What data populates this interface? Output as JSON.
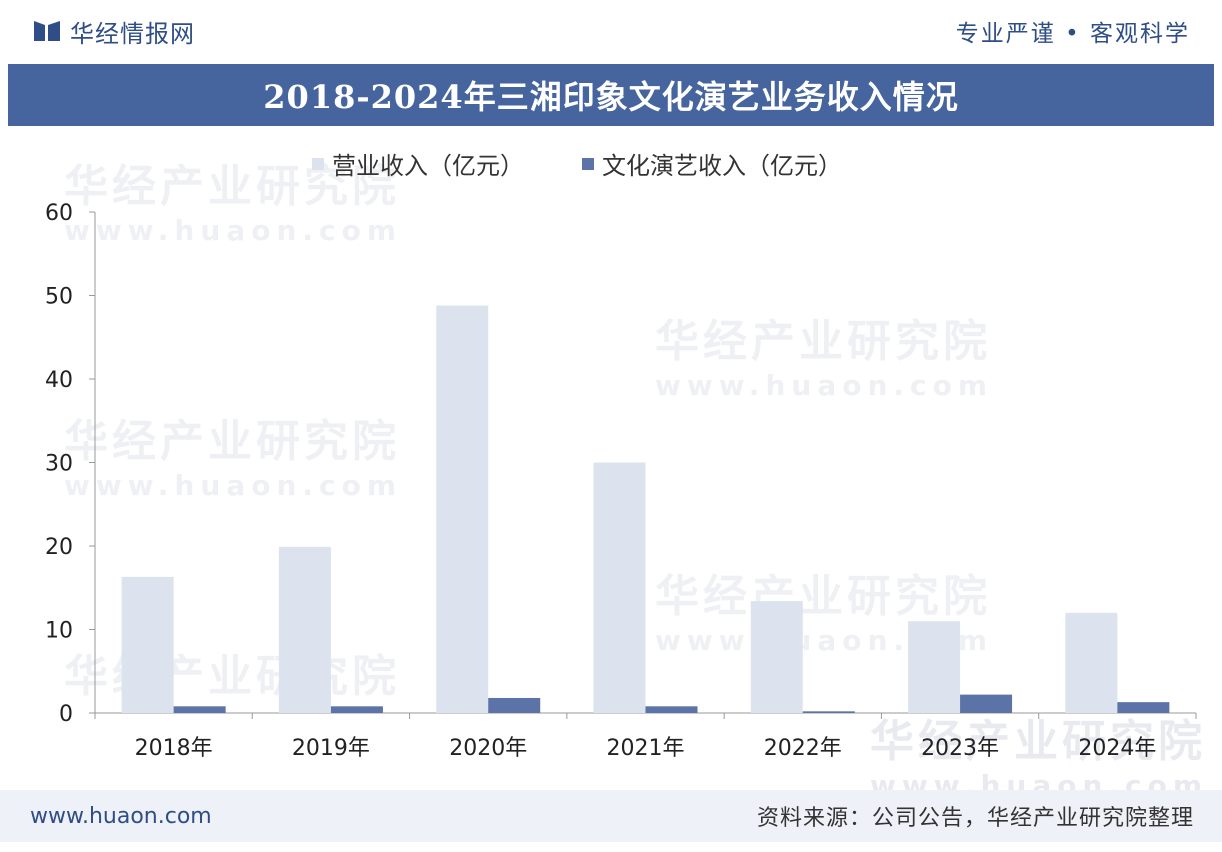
{
  "header": {
    "brand_name": "华经情报网",
    "slogan": "专业严谨 • 客观科学"
  },
  "title": "2018-2024年三湘印象文化演艺业务收入情况",
  "watermark": {
    "line1": "华经产业研究院",
    "line2": "www.huaon.com"
  },
  "footer": {
    "url": "www.huaon.com",
    "source": "资料来源：公司公告，华经产业研究院整理"
  },
  "colors": {
    "series1": "#dde3ee",
    "series2": "#5b73a6",
    "title_bar": "#46659e"
  },
  "chart_data": {
    "type": "bar",
    "title": "2018-2024年三湘印象文化演艺业务收入情况",
    "categories": [
      "2018年",
      "2019年",
      "2020年",
      "2021年",
      "2022年",
      "2023年",
      "2024年"
    ],
    "series": [
      {
        "name": "营业收入（亿元）",
        "values": [
          16.3,
          19.9,
          48.8,
          30.0,
          13.4,
          11.0,
          12.0
        ]
      },
      {
        "name": "文化演艺收入（亿元）",
        "values": [
          0.8,
          0.8,
          1.8,
          0.8,
          0.2,
          2.2,
          1.3
        ]
      }
    ],
    "ylim": [
      0,
      60
    ],
    "yticks": [
      0,
      10,
      20,
      30,
      40,
      50,
      60
    ],
    "xlabel": "",
    "ylabel": "",
    "legend": "top-center",
    "grid": false
  }
}
